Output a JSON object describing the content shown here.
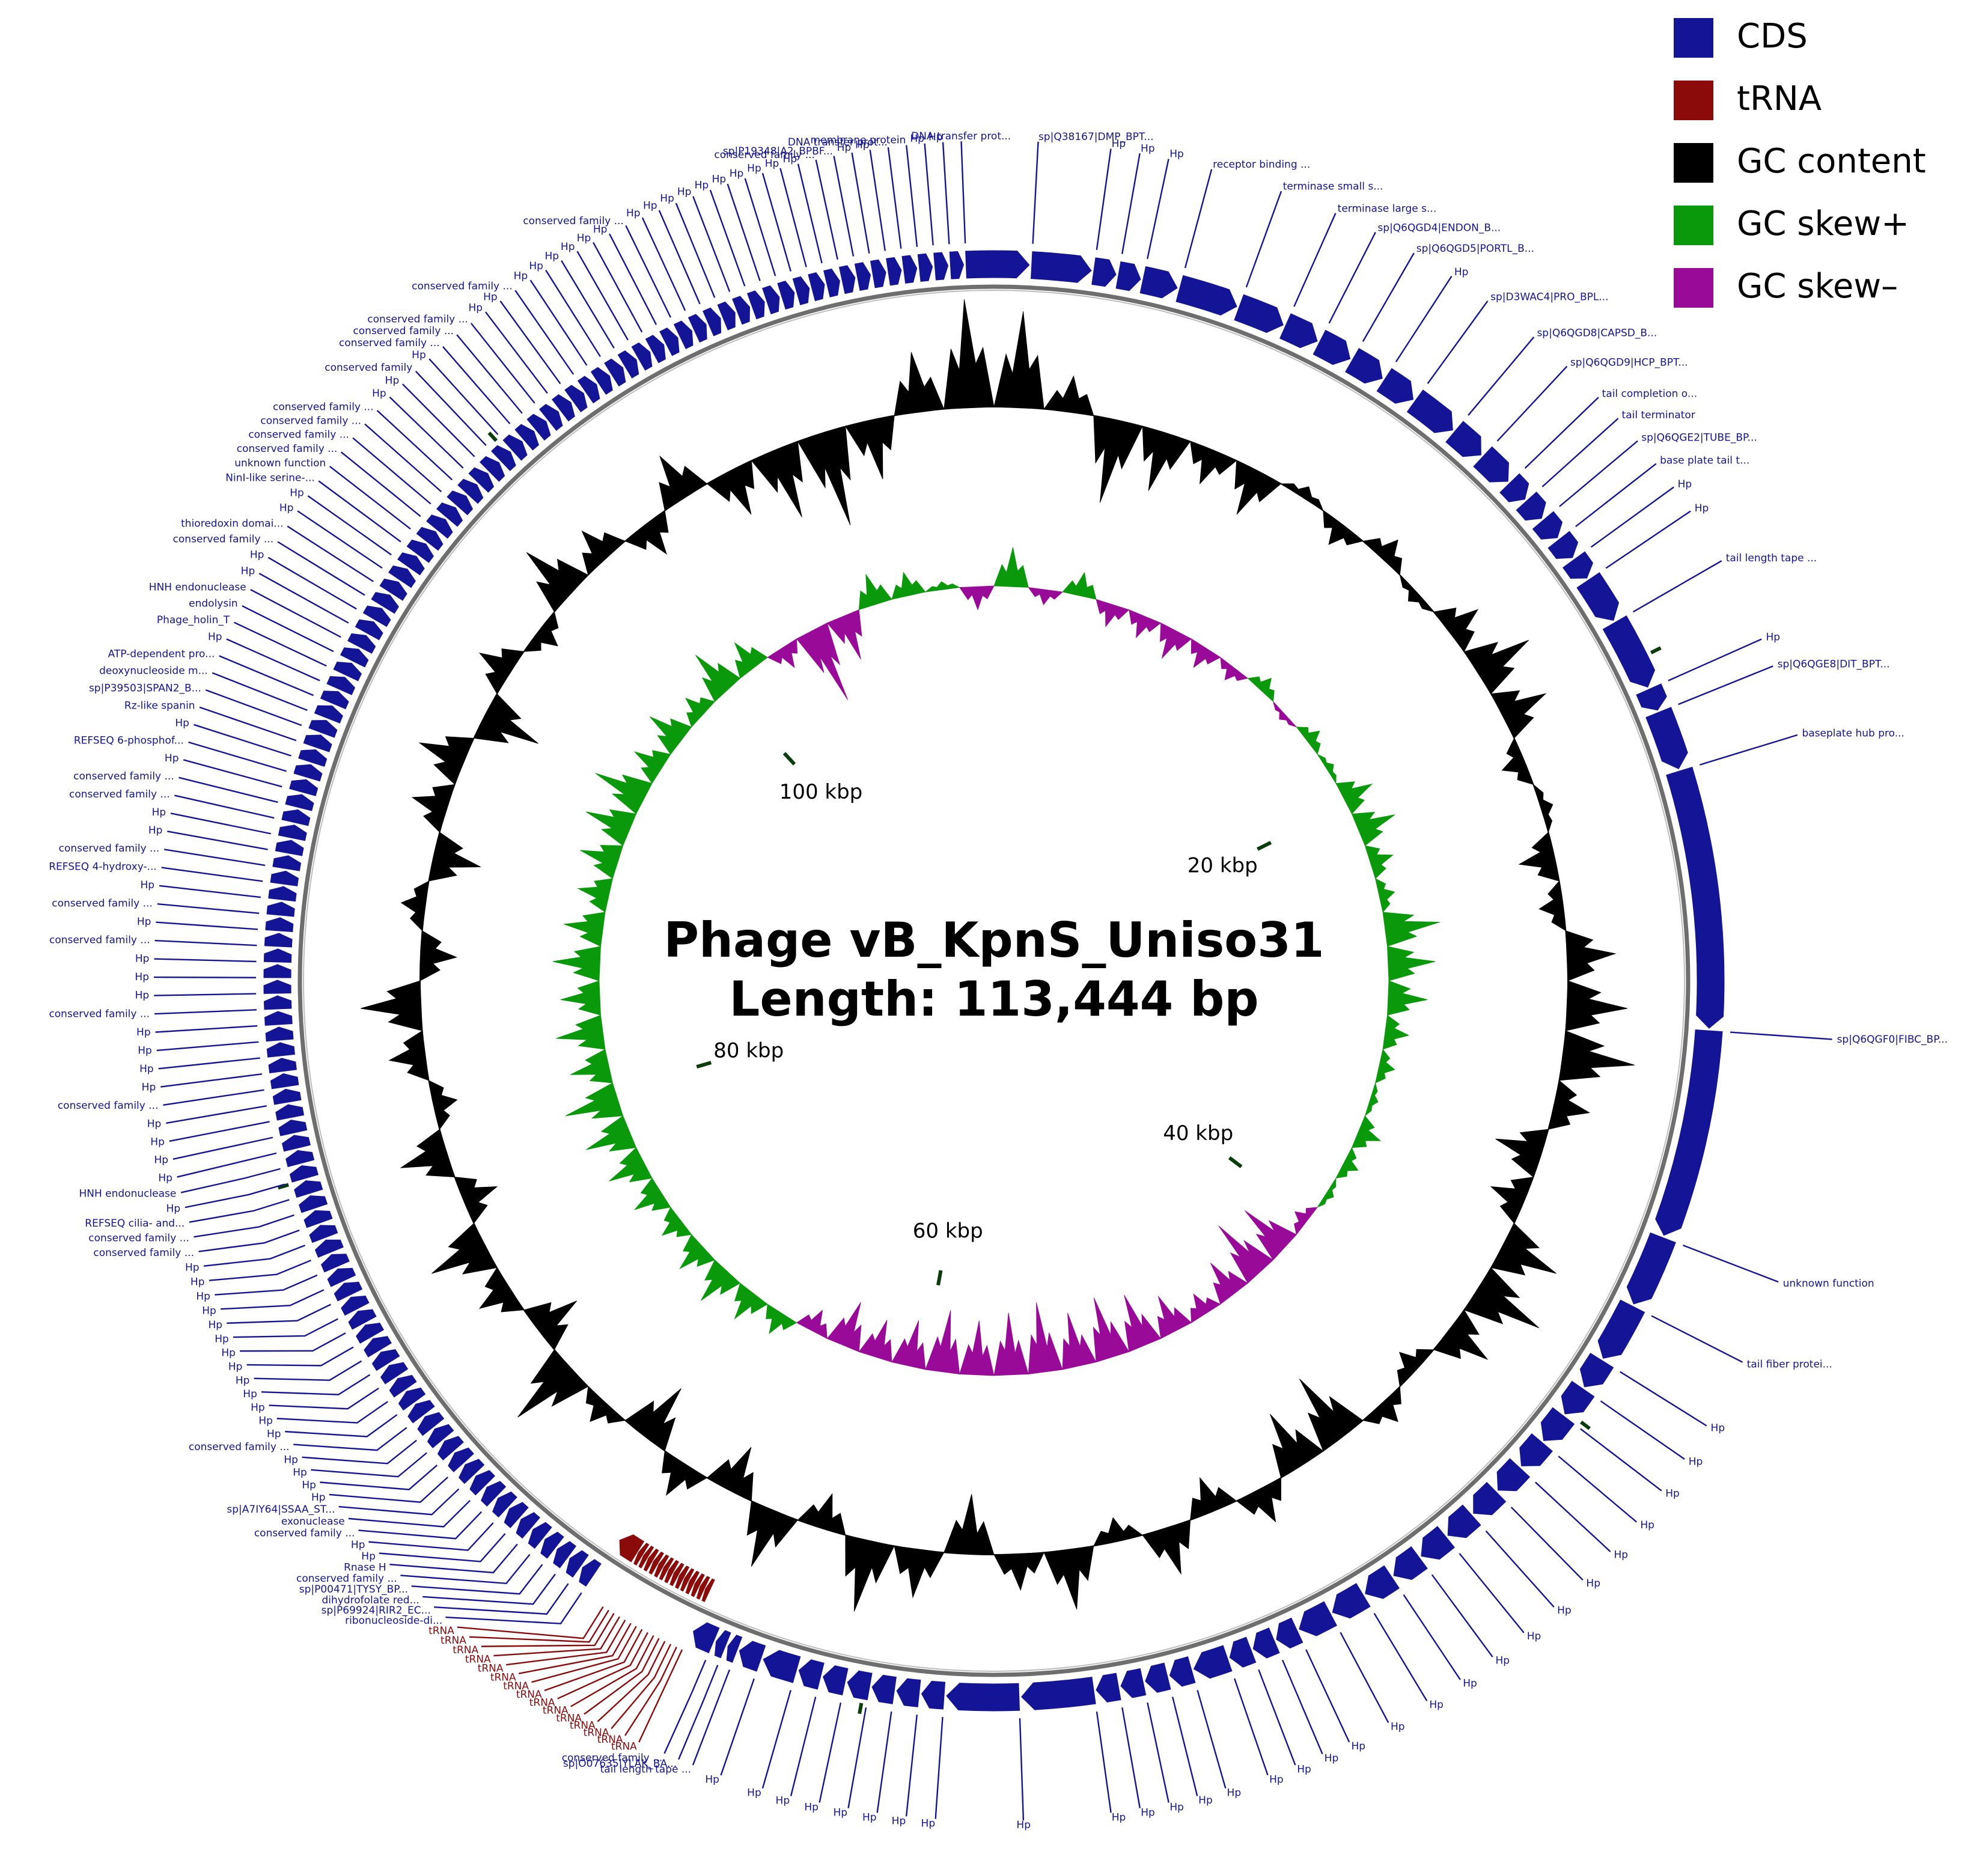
{
  "title": "Phage vB_KpnS_Uniso31",
  "length": {
    "value": 113444,
    "label": "Length: 113,444 bp"
  },
  "legend": [
    {
      "name": "CDS",
      "color": "#141496"
    },
    {
      "name": "tRNA",
      "color": "#8b0a0a"
    },
    {
      "name": "GC content",
      "color": "#000000"
    },
    {
      "name": "GC skew+",
      "color": "#0a990a"
    },
    {
      "name": "GC skew–",
      "color": "#990a99"
    }
  ],
  "ticks": [
    {
      "value": 20000,
      "label": "20 kbp"
    },
    {
      "value": 40000,
      "label": "40 kbp"
    },
    {
      "value": 60000,
      "label": "60 kbp"
    },
    {
      "value": 80000,
      "label": "80 kbp"
    },
    {
      "value": 100000,
      "label": "100 kbp"
    }
  ],
  "gc_content": [
    0.8,
    0.3,
    -0.7,
    -0.5,
    -0.3,
    -0.4,
    0.1,
    -0.2,
    0.2,
    -0.1,
    0.3,
    0.5,
    0.4,
    -0.2,
    0.1,
    -0.3,
    -0.2,
    0.4,
    0.5,
    0.6,
    0.3,
    -0.4,
    -0.3,
    0.5,
    0.6,
    0.4,
    -0.2,
    0.2,
    -0.6,
    -0.5,
    0.3,
    -0.3,
    0.4,
    -0.2,
    0.5,
    0.3,
    -0.5,
    0.4,
    0.6,
    -0.3,
    0.5,
    -0.4,
    0.3,
    -0.5,
    0.2,
    0.6,
    -0.4,
    0.3,
    0.5,
    -0.3,
    0.4,
    -0.2,
    0.3,
    0.5,
    -0.3,
    0.2,
    -0.4,
    0.3,
    0.4,
    -0.5,
    0.3,
    -0.2,
    0.5,
    0.3,
    -0.3,
    0.4,
    -0.4,
    -0.6,
    -0.8,
    -0.5,
    0.5,
    0.9
  ],
  "gc_skew": [
    0.5,
    -0.2,
    0.3,
    -0.3,
    -0.3,
    -0.4,
    -0.3,
    -0.2,
    0.2,
    -0.1,
    0.2,
    0.1,
    0.4,
    0.5,
    0.3,
    0.2,
    0.7,
    0.6,
    0.5,
    0.3,
    0.2,
    0.1,
    0.3,
    0.2,
    0.1,
    -0.2,
    -0.7,
    -0.8,
    -0.5,
    -0.3,
    -0.5,
    -0.7,
    -0.8,
    -0.7,
    -0.9,
    -0.8,
    -0.7,
    -0.8,
    -0.6,
    -0.5,
    -0.6,
    -0.3,
    0.3,
    0.4,
    0.5,
    0.4,
    0.3,
    0.4,
    0.5,
    0.6,
    0.7,
    0.5,
    0.6,
    0.5,
    0.6,
    0.5,
    0.4,
    0.5,
    0.6,
    0.7,
    0.4,
    0.5,
    0.3,
    0.6,
    0.4,
    -0.3,
    -1.0,
    -0.6,
    0.4,
    0.3,
    0.1,
    -0.3
  ],
  "features": [
    {
      "label": "sp|Q38167|DMP_BPT...",
      "pos": 950
    },
    {
      "label": "Hp",
      "pos": 2520
    },
    {
      "label": "Hp",
      "pos": 3150
    },
    {
      "label": "Hp",
      "pos": 3780
    },
    {
      "label": "receptor binding ...",
      "pos": 4730
    },
    {
      "label": "terminase small s...",
      "pos": 6300
    },
    {
      "label": "terminase large s...",
      "pos": 7560
    },
    {
      "label": "sp|Q6QGD4|ENDON_B...",
      "pos": 8510
    },
    {
      "label": "sp|Q6QGD5|PORTL_B...",
      "pos": 9450
    },
    {
      "label": "Hp",
      "pos": 10400
    },
    {
      "label": "sp|D3WAC4|PRO_BPL...",
      "pos": 11340
    },
    {
      "label": "sp|Q6QGD8|CAPSD_B...",
      "pos": 12600
    },
    {
      "label": "sp|Q6QGD9|HCP_BPT...",
      "pos": 13550
    },
    {
      "label": "tail completion o...",
      "pos": 14500
    },
    {
      "label": "tail terminator",
      "pos": 15120
    },
    {
      "label": "sp|Q6QGE2|TUBE_BP...",
      "pos": 15760
    },
    {
      "label": "base plate tail t...",
      "pos": 16390
    },
    {
      "label": "Hp",
      "pos": 17020
    },
    {
      "label": "Hp",
      "pos": 17650
    },
    {
      "label": "tail length tape ...",
      "pos": 18910
    },
    {
      "label": "Hp",
      "pos": 20800
    },
    {
      "label": "sp|Q6QGE8|DIT_BPT...",
      "pos": 21430
    },
    {
      "label": "baseplate hub pro...",
      "pos": 23000
    },
    {
      "label": "sp|Q6QGF0|FIBC_BP...",
      "pos": 29620
    },
    {
      "label": "unknown function",
      "pos": 34980
    },
    {
      "label": "tail fiber protei...",
      "pos": 36870
    },
    {
      "label": "Hp",
      "pos": 38440
    },
    {
      "label": "Hp",
      "pos": 39300
    },
    {
      "label": "Hp",
      "pos": 40140
    },
    {
      "label": "Hp",
      "pos": 41000
    },
    {
      "label": "Hp",
      "pos": 41850
    },
    {
      "label": "Hp",
      "pos": 42700
    },
    {
      "label": "Hp",
      "pos": 43550
    },
    {
      "label": "Hp",
      "pos": 44400
    },
    {
      "label": "Hp",
      "pos": 45250
    },
    {
      "label": "Hp",
      "pos": 46100
    },
    {
      "label": "Hp",
      "pos": 46950
    },
    {
      "label": "Hp",
      "pos": 47900
    },
    {
      "label": "Hp",
      "pos": 48840
    },
    {
      "label": "Hp",
      "pos": 49470
    },
    {
      "label": "Hp",
      "pos": 50100
    },
    {
      "label": "Hp",
      "pos": 50730
    },
    {
      "label": "Hp",
      "pos": 51680
    },
    {
      "label": "Hp",
      "pos": 52310
    },
    {
      "label": "Hp",
      "pos": 52940
    },
    {
      "label": "Hp",
      "pos": 53570
    },
    {
      "label": "Hp",
      "pos": 54200
    },
    {
      "label": "Hp",
      "pos": 56090
    },
    {
      "label": "Hp",
      "pos": 57980
    },
    {
      "label": "Hp",
      "pos": 58610
    },
    {
      "label": "Hp",
      "pos": 59240
    },
    {
      "label": "Hp",
      "pos": 59870
    },
    {
      "label": "Hp",
      "pos": 60500
    },
    {
      "label": "Hp",
      "pos": 61130
    },
    {
      "label": "Hp",
      "pos": 61760
    },
    {
      "label": "Hp",
      "pos": 62700
    },
    {
      "label": "tail length tape ...",
      "pos": 63340
    },
    {
      "label": "sp|O07635|YLAK_BA...",
      "pos": 63650
    },
    {
      "label": "conserved family ...",
      "pos": 63970
    },
    {
      "label": "tRNA",
      "pos": 64600
    },
    {
      "label": "tRNA",
      "pos": 64750
    },
    {
      "label": "tRNA",
      "pos": 64910
    },
    {
      "label": "tRNA",
      "pos": 65070
    },
    {
      "label": "tRNA",
      "pos": 65230
    },
    {
      "label": "tRNA",
      "pos": 65380
    },
    {
      "label": "tRNA",
      "pos": 65540
    },
    {
      "label": "tRNA",
      "pos": 65700
    },
    {
      "label": "tRNA",
      "pos": 65860
    },
    {
      "label": "tRNA",
      "pos": 66010
    },
    {
      "label": "tRNA",
      "pos": 66170
    },
    {
      "label": "tRNA",
      "pos": 66330
    },
    {
      "label": "tRNA",
      "pos": 66490
    },
    {
      "label": "tRNA",
      "pos": 66640
    },
    {
      "label": "tRNA",
      "pos": 66800
    },
    {
      "label": "ribonucleoside-di...",
      "pos": 67430
    },
    {
      "label": "sp|P69924|RIR2_EC...",
      "pos": 67824
    },
    {
      "label": "dihydrofolate red...",
      "pos": 68218
    },
    {
      "label": "sp|P00471|TYSY_BP...",
      "pos": 68612
    },
    {
      "label": "conserved family ...",
      "pos": 69006
    },
    {
      "label": "Rnase H",
      "pos": 69400
    },
    {
      "label": "Hp",
      "pos": 69794
    },
    {
      "label": "Hp",
      "pos": 70188
    },
    {
      "label": "conserved family ...",
      "pos": 70582
    },
    {
      "label": "exonuclease",
      "pos": 70976
    },
    {
      "label": "sp|A7IY64|SSAA_ST...",
      "pos": 71370
    },
    {
      "label": "Hp",
      "pos": 71764
    },
    {
      "label": "Hp",
      "pos": 72158
    },
    {
      "label": "Hp",
      "pos": 72552
    },
    {
      "label": "Hp",
      "pos": 72946
    },
    {
      "label": "conserved family ...",
      "pos": 73340
    },
    {
      "label": "Hp",
      "pos": 73734
    },
    {
      "label": "Hp",
      "pos": 74128
    },
    {
      "label": "Hp",
      "pos": 74522
    },
    {
      "label": "Hp",
      "pos": 74916
    },
    {
      "label": "Hp",
      "pos": 75310
    },
    {
      "label": "Hp",
      "pos": 75704
    },
    {
      "label": "Hp",
      "pos": 76098
    },
    {
      "label": "Hp",
      "pos": 76492
    },
    {
      "label": "Hp",
      "pos": 76886
    },
    {
      "label": "Hp",
      "pos": 77280
    },
    {
      "label": "Hp",
      "pos": 77674
    },
    {
      "label": "Hp",
      "pos": 78068
    },
    {
      "label": "Hp",
      "pos": 78462
    },
    {
      "label": "conserved family ...",
      "pos": 78856
    },
    {
      "label": "conserved family ...",
      "pos": 79250
    },
    {
      "label": "REFSEQ cilia- and...",
      "pos": 79644
    },
    {
      "label": "Hp",
      "pos": 80038
    },
    {
      "label": "HNH endonuclease",
      "pos": 80432
    },
    {
      "label": "Hp",
      "pos": 80826
    },
    {
      "label": "Hp",
      "pos": 81220
    },
    {
      "label": "Hp",
      "pos": 81614
    },
    {
      "label": "Hp",
      "pos": 82008
    },
    {
      "label": "conserved family ...",
      "pos": 82402
    },
    {
      "label": "Hp",
      "pos": 82796
    },
    {
      "label": "Hp",
      "pos": 83190
    },
    {
      "label": "Hp",
      "pos": 83584
    },
    {
      "label": "Hp",
      "pos": 83978
    },
    {
      "label": "conserved family ...",
      "pos": 84372
    },
    {
      "label": "Hp",
      "pos": 84766
    },
    {
      "label": "Hp",
      "pos": 85160
    },
    {
      "label": "Hp",
      "pos": 85554
    },
    {
      "label": "conserved family ...",
      "pos": 85948
    },
    {
      "label": "Hp",
      "pos": 86342
    },
    {
      "label": "conserved family ...",
      "pos": 86736
    },
    {
      "label": "Hp",
      "pos": 87130
    },
    {
      "label": "REFSEQ 4-hydroxy-...",
      "pos": 87524
    },
    {
      "label": "conserved family ...",
      "pos": 87918
    },
    {
      "label": "Hp",
      "pos": 88312
    },
    {
      "label": "Hp",
      "pos": 88706
    },
    {
      "label": "conserved family ...",
      "pos": 89100
    },
    {
      "label": "conserved family ...",
      "pos": 89494
    },
    {
      "label": "Hp",
      "pos": 89888
    },
    {
      "label": "REFSEQ 6-phosphof...",
      "pos": 90282
    },
    {
      "label": "Hp",
      "pos": 90676
    },
    {
      "label": "Rz-like spanin",
      "pos": 91070
    },
    {
      "label": "sp|P39503|SPAN2_B...",
      "pos": 91464
    },
    {
      "label": "deoxynucleoside m...",
      "pos": 91858
    },
    {
      "label": "ATP-dependent pro...",
      "pos": 92252
    },
    {
      "label": "Hp",
      "pos": 92646
    },
    {
      "label": "Phage_holin_T",
      "pos": 93040
    },
    {
      "label": "endolysin",
      "pos": 93434
    },
    {
      "label": "HNH endonuclease",
      "pos": 93828
    },
    {
      "label": "Hp",
      "pos": 94222
    },
    {
      "label": "Hp",
      "pos": 94616
    },
    {
      "label": "conserved family ...",
      "pos": 95010
    },
    {
      "label": "thioredoxin domai...",
      "pos": 95404
    },
    {
      "label": "Hp",
      "pos": 95798
    },
    {
      "label": "Hp",
      "pos": 96192
    },
    {
      "label": "NinI-like serine-...",
      "pos": 96586
    },
    {
      "label": "unknown function",
      "pos": 96980
    },
    {
      "label": "conserved family ...",
      "pos": 97374
    },
    {
      "label": "conserved family ...",
      "pos": 97768
    },
    {
      "label": "conserved family ...",
      "pos": 98162
    },
    {
      "label": "conserved family ...",
      "pos": 98556
    },
    {
      "label": "Hp",
      "pos": 98950
    },
    {
      "label": "Hp",
      "pos": 99344
    },
    {
      "label": "conserved family",
      "pos": 99738
    },
    {
      "label": "Hp",
      "pos": 100132
    },
    {
      "label": "conserved family ...",
      "pos": 100526
    },
    {
      "label": "conserved family ...",
      "pos": 100920
    },
    {
      "label": "conserved family ...",
      "pos": 101314
    },
    {
      "label": "Hp",
      "pos": 101708
    },
    {
      "label": "Hp",
      "pos": 102102
    },
    {
      "label": "conserved family ...",
      "pos": 102496
    },
    {
      "label": "Hp",
      "pos": 102890
    },
    {
      "label": "Hp",
      "pos": 103284
    },
    {
      "label": "Hp",
      "pos": 103678
    },
    {
      "label": "Hp",
      "pos": 104072
    },
    {
      "label": "Hp",
      "pos": 104466
    },
    {
      "label": "Hp",
      "pos": 104860
    },
    {
      "label": "conserved family ...",
      "pos": 105254
    },
    {
      "label": "Hp",
      "pos": 105648
    },
    {
      "label": "Hp",
      "pos": 106042
    },
    {
      "label": "Hp",
      "pos": 106436
    },
    {
      "label": "Hp",
      "pos": 106830
    },
    {
      "label": "Hp",
      "pos": 107224
    },
    {
      "label": "Hp",
      "pos": 107618
    },
    {
      "label": "Hp",
      "pos": 108012
    },
    {
      "label": "Hp",
      "pos": 108406
    },
    {
      "label": "Hp",
      "pos": 108800
    },
    {
      "label": "Hp",
      "pos": 109194
    },
    {
      "label": "conserved family ...",
      "pos": 109588
    },
    {
      "label": "sp|P19348|A2_BPBF...",
      "pos": 109982
    },
    {
      "label": "Hp",
      "pos": 110376
    },
    {
      "label": "Hp",
      "pos": 110770
    },
    {
      "label": "DNA transfer prot...",
      "pos": 111164
    },
    {
      "label": "membrane protein",
      "pos": 111558
    },
    {
      "label": "Hp",
      "pos": 111952
    },
    {
      "label": "Hp",
      "pos": 112346
    },
    {
      "label": "DNA transfer prot...",
      "pos": 112740
    }
  ]
}
